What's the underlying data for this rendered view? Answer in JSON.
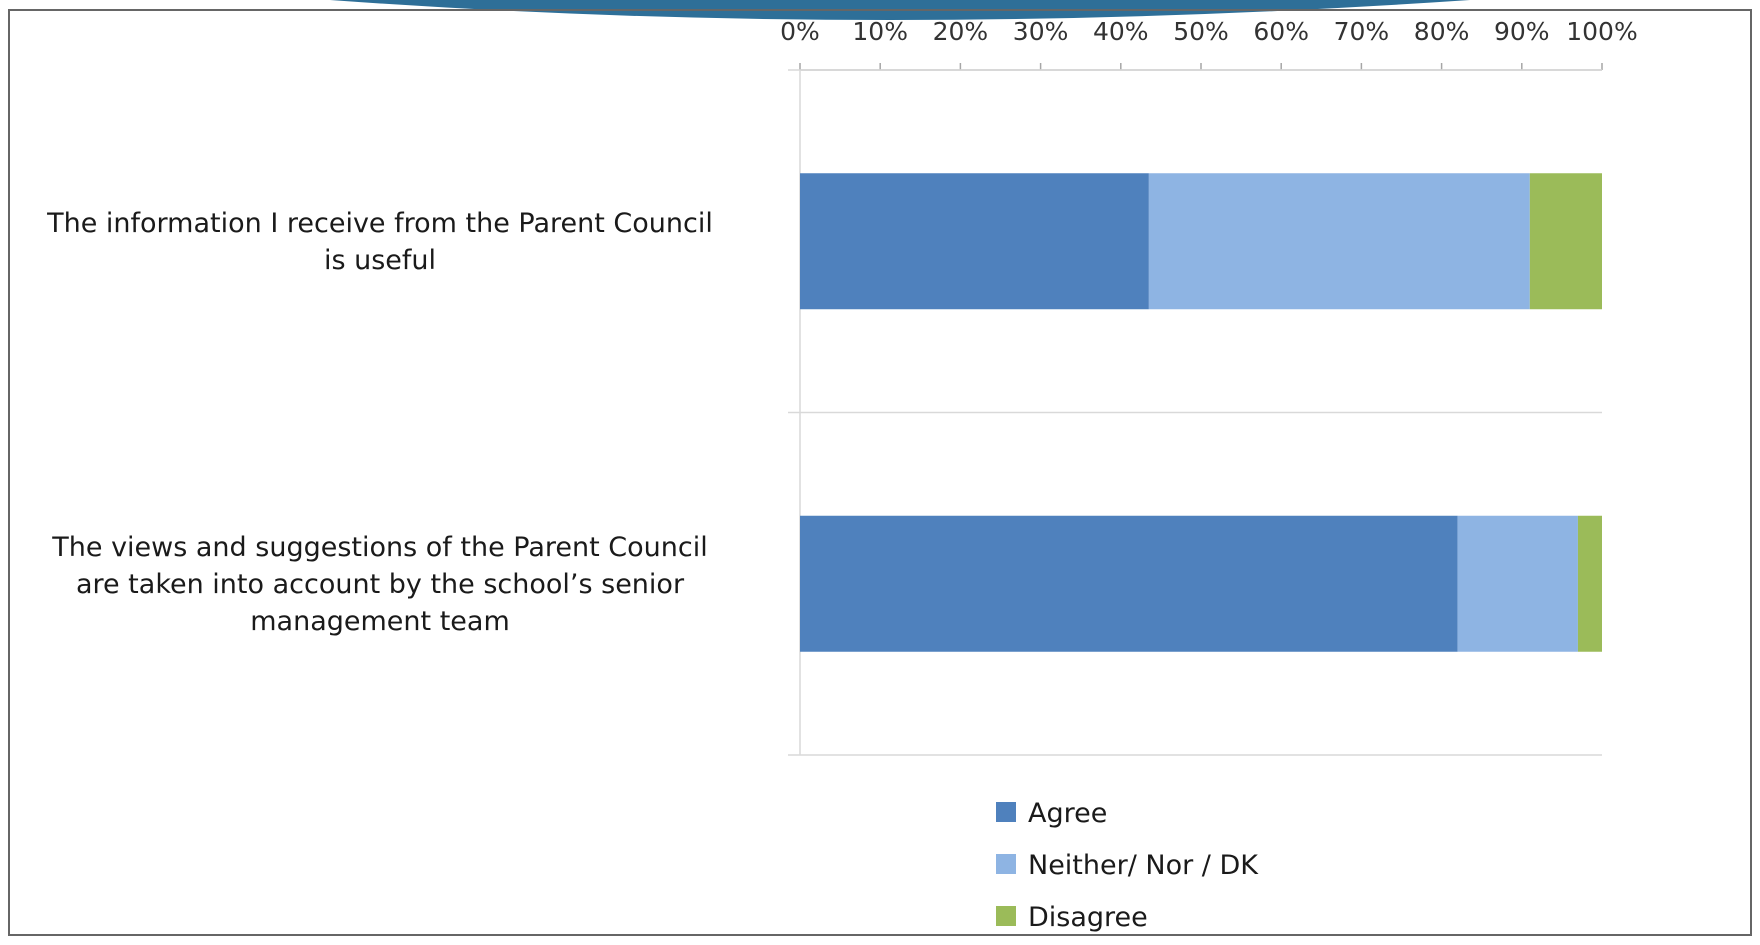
{
  "chart_data": {
    "type": "bar",
    "orientation": "horizontal",
    "stacked": true,
    "categories": [
      "The information I receive from the Parent Council is useful",
      "The views and suggestions of the Parent Council are taken into account by the school’s senior management team"
    ],
    "category_lines": [
      [
        "The information I receive from the Parent Council",
        "is useful"
      ],
      [
        "The views and suggestions of the Parent Council",
        "are taken into account by the school’s senior",
        "management team"
      ]
    ],
    "series": [
      {
        "name": "Agree",
        "values": [
          43.5,
          82
        ],
        "color": "#4f81bd"
      },
      {
        "name": "Neither/ Nor / DK",
        "values": [
          47.5,
          15
        ],
        "color": "#8eb4e3"
      },
      {
        "name": "Disagree",
        "values": [
          9,
          3
        ],
        "color": "#9bbb59"
      }
    ],
    "x_ticks": [
      "0%",
      "10%",
      "20%",
      "30%",
      "40%",
      "50%",
      "60%",
      "70%",
      "80%",
      "90%",
      "100%"
    ],
    "xlim": [
      0,
      100
    ],
    "x_axis_position": "top",
    "grid": false,
    "legend_position": "bottom"
  }
}
